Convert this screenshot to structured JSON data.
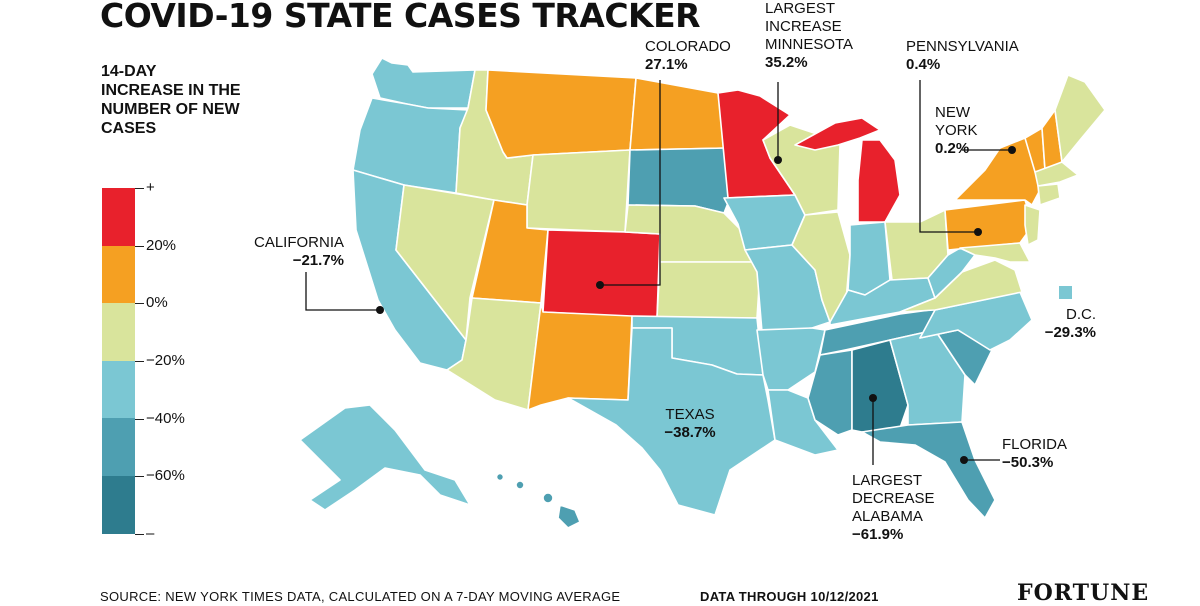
{
  "title": "COVID-19 STATE CASES TRACKER",
  "legend": {
    "title": "14-DAY INCREASE IN THE NUMBER OF NEW CASES",
    "ticks": [
      "+",
      "20%",
      "0%",
      "−20%",
      "−40%",
      "−60%",
      "–"
    ],
    "colors": [
      "#e8212c",
      "#f5a022",
      "#d9e49c",
      "#7bc7d3",
      "#4e9fb1",
      "#2e7c8e"
    ]
  },
  "labels": {
    "colorado": {
      "name": "COLORADO",
      "pct": "27.1%"
    },
    "minnesota": {
      "line1": "LARGEST",
      "line2": "INCREASE",
      "name": "MINNESOTA",
      "pct": "35.2%"
    },
    "pennsylvania": {
      "name": "PENNSYLVANIA",
      "pct": "0.4%"
    },
    "new_york": {
      "line1": "NEW",
      "name": "YORK",
      "pct": "0.2%"
    },
    "california": {
      "name": "CALIFORNIA",
      "pct": "−21.7%"
    },
    "dc": {
      "name": "D.C.",
      "pct": "−29.3%"
    },
    "texas": {
      "name": "TEXAS",
      "pct": "−38.7%"
    },
    "florida": {
      "name": "FLORIDA",
      "pct": "−50.3%"
    },
    "alabama": {
      "line1": "LARGEST",
      "line2": "DECREASE",
      "name": "ALABAMA",
      "pct": "−61.9%"
    }
  },
  "footer": {
    "source": "SOURCE: NEW YORK TIMES DATA, CALCULATED ON A 7-DAY MOVING AVERAGE",
    "data_through": "DATA THROUGH 10/12/2021",
    "logo": "FORTUNE"
  },
  "map_colors": {
    "red": "#e8212c",
    "orange": "#f5a022",
    "yellow": "#d9e49c",
    "light_blue": "#7bc7d3",
    "mid_blue": "#4e9fb1",
    "dark_blue": "#2e7c8e"
  }
}
